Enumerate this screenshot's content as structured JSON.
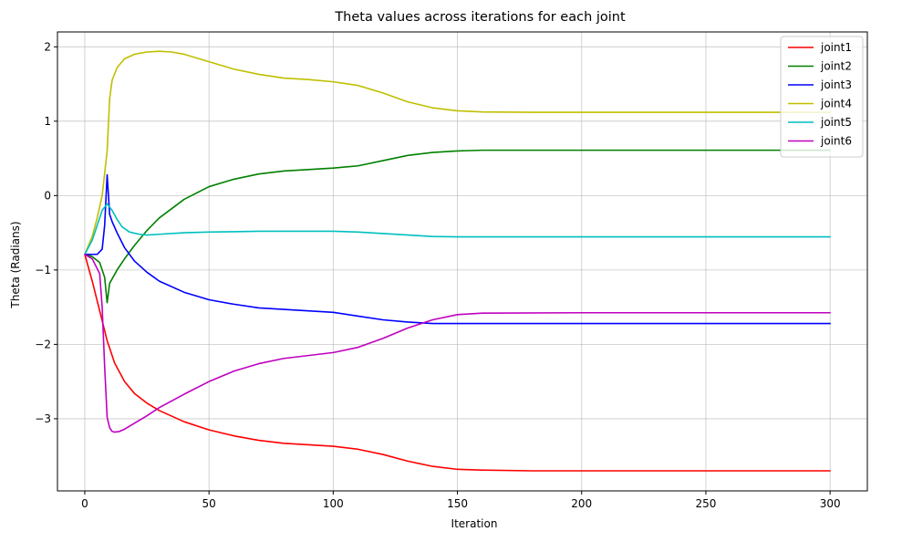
{
  "chart_data": {
    "type": "line",
    "title": "Theta values across iterations for each joint",
    "xlabel": "Iteration",
    "ylabel": "Theta (Radians)",
    "xlim": [
      -11,
      315
    ],
    "ylim": [
      -3.97,
      2.2
    ],
    "xticks": [
      0,
      50,
      100,
      150,
      200,
      250,
      300
    ],
    "yticks": [
      -3,
      -2,
      -1,
      0,
      1,
      2
    ],
    "ytick_labels": [
      "−3",
      "−2",
      "−1",
      "0",
      "1",
      "2"
    ],
    "grid": true,
    "legend_position": "top-right",
    "series": [
      {
        "name": "joint1",
        "color": "#ff0000",
        "x": [
          0,
          3,
          6,
          9,
          12,
          16,
          20,
          25,
          30,
          40,
          50,
          60,
          70,
          80,
          90,
          100,
          110,
          120,
          130,
          140,
          150,
          160,
          180,
          200,
          250,
          300
        ],
        "y": [
          -0.79,
          -1.15,
          -1.55,
          -1.95,
          -2.25,
          -2.5,
          -2.66,
          -2.79,
          -2.89,
          -3.04,
          -3.15,
          -3.23,
          -3.29,
          -3.33,
          -3.35,
          -3.37,
          -3.41,
          -3.48,
          -3.57,
          -3.64,
          -3.68,
          -3.69,
          -3.7,
          -3.7,
          -3.7,
          -3.7
        ]
      },
      {
        "name": "joint2",
        "color": "#008000",
        "x": [
          0,
          3,
          6,
          8,
          9,
          10,
          11,
          13,
          16,
          20,
          25,
          30,
          40,
          50,
          60,
          70,
          80,
          90,
          100,
          110,
          120,
          130,
          140,
          150,
          160,
          180,
          200,
          250,
          300
        ],
        "y": [
          -0.79,
          -0.82,
          -0.9,
          -1.1,
          -1.44,
          -1.18,
          -1.12,
          -1.0,
          -0.85,
          -0.67,
          -0.47,
          -0.3,
          -0.05,
          0.12,
          0.22,
          0.29,
          0.33,
          0.35,
          0.37,
          0.4,
          0.47,
          0.54,
          0.58,
          0.6,
          0.61,
          0.61,
          0.61,
          0.61,
          0.61
        ]
      },
      {
        "name": "joint3",
        "color": "#0000ff",
        "x": [
          0,
          3,
          5,
          7,
          8,
          9,
          10,
          11,
          13,
          16,
          20,
          25,
          30,
          40,
          50,
          60,
          70,
          80,
          90,
          100,
          110,
          120,
          130,
          140,
          150,
          160,
          200,
          250,
          300
        ],
        "y": [
          -0.79,
          -0.79,
          -0.79,
          -0.72,
          -0.4,
          0.28,
          -0.25,
          -0.35,
          -0.5,
          -0.7,
          -0.88,
          -1.03,
          -1.15,
          -1.3,
          -1.4,
          -1.46,
          -1.51,
          -1.53,
          -1.55,
          -1.57,
          -1.62,
          -1.67,
          -1.7,
          -1.72,
          -1.72,
          -1.72,
          -1.72,
          -1.72,
          -1.72
        ]
      },
      {
        "name": "joint4",
        "color": "#bfbf00",
        "x": [
          0,
          3,
          5,
          7,
          8,
          9,
          10,
          11,
          13,
          16,
          20,
          25,
          30,
          35,
          40,
          50,
          60,
          70,
          80,
          90,
          100,
          110,
          120,
          130,
          140,
          150,
          160,
          180,
          200,
          250,
          300
        ],
        "y": [
          -0.79,
          -0.55,
          -0.3,
          0.0,
          0.3,
          0.6,
          1.3,
          1.55,
          1.72,
          1.84,
          1.9,
          1.93,
          1.94,
          1.93,
          1.9,
          1.8,
          1.7,
          1.63,
          1.58,
          1.56,
          1.53,
          1.48,
          1.38,
          1.26,
          1.18,
          1.14,
          1.125,
          1.12,
          1.12,
          1.12,
          1.12
        ]
      },
      {
        "name": "joint5",
        "color": "#00bfbf",
        "x": [
          0,
          3,
          5,
          7,
          9,
          11,
          13,
          15,
          18,
          22,
          25,
          30,
          40,
          50,
          60,
          70,
          80,
          90,
          100,
          110,
          120,
          130,
          140,
          150,
          160,
          200,
          250,
          300
        ],
        "y": [
          -0.79,
          -0.6,
          -0.4,
          -0.2,
          -0.11,
          -0.2,
          -0.32,
          -0.42,
          -0.49,
          -0.52,
          -0.53,
          -0.52,
          -0.5,
          -0.49,
          -0.485,
          -0.48,
          -0.48,
          -0.48,
          -0.48,
          -0.49,
          -0.51,
          -0.53,
          -0.55,
          -0.555,
          -0.555,
          -0.555,
          -0.555,
          -0.555
        ]
      },
      {
        "name": "joint6",
        "color": "#bf00bf",
        "x": [
          0,
          3,
          6,
          7,
          8,
          9,
          10,
          11,
          12,
          14,
          16,
          20,
          25,
          30,
          40,
          50,
          60,
          70,
          80,
          90,
          100,
          110,
          120,
          130,
          140,
          150,
          160,
          200,
          250,
          300
        ],
        "y": [
          -0.79,
          -0.85,
          -1.05,
          -1.5,
          -2.3,
          -2.98,
          -3.12,
          -3.17,
          -3.18,
          -3.17,
          -3.14,
          -3.06,
          -2.96,
          -2.85,
          -2.67,
          -2.5,
          -2.36,
          -2.26,
          -2.19,
          -2.15,
          -2.11,
          -2.04,
          -1.92,
          -1.78,
          -1.67,
          -1.6,
          -1.58,
          -1.575,
          -1.575,
          -1.575
        ]
      }
    ]
  }
}
